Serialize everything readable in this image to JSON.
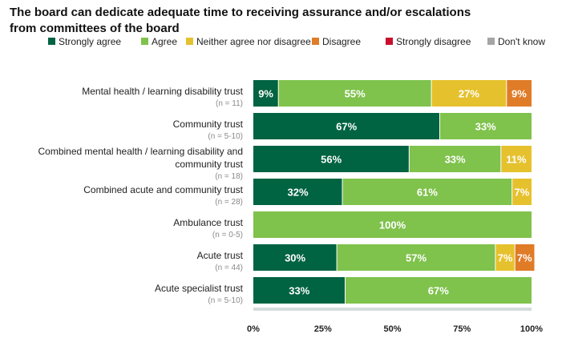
{
  "chart_data": {
    "type": "bar",
    "orientation": "horizontal",
    "stacked": true,
    "title_line1": "The board can dedicate adequate time to receiving assurance and/or escalations",
    "title_line2": "from committees of the board",
    "legend_position": "top",
    "legend": [
      {
        "name": "Strongly agree",
        "color": "#006341"
      },
      {
        "name": "Agree",
        "color": "#7fc24c"
      },
      {
        "name": "Neither agree nor disagree",
        "color": "#e6c12e"
      },
      {
        "name": "Disagree",
        "color": "#e07b27"
      },
      {
        "name": "Strongly disagree",
        "color": "#c8102e"
      },
      {
        "name": "Don't know",
        "color": "#a5a5a5"
      }
    ],
    "categories": [
      {
        "label_lines": [
          "Mental health / learning disability trust"
        ],
        "n": "(n = 11)"
      },
      {
        "label_lines": [
          "Community trust"
        ],
        "n": "(n = 5-10)"
      },
      {
        "label_lines": [
          "Combined mental health / learning disability and",
          "community trust"
        ],
        "n": "(n = 18)"
      },
      {
        "label_lines": [
          "Combined acute and community trust"
        ],
        "n": "(n = 28)"
      },
      {
        "label_lines": [
          "Ambulance trust"
        ],
        "n": "(n = 0-5)"
      },
      {
        "label_lines": [
          "Acute trust"
        ],
        "n": "(n = 44)"
      },
      {
        "label_lines": [
          "Acute specialist trust"
        ],
        "n": "(n = 5-10)"
      }
    ],
    "series": [
      {
        "name": "Strongly agree",
        "values": [
          9,
          67,
          56,
          32,
          0,
          30,
          33
        ],
        "labels": [
          "9%",
          "67%",
          "56%",
          "32%",
          "",
          "30%",
          "33%"
        ]
      },
      {
        "name": "Agree",
        "values": [
          55,
          33,
          33,
          61,
          100,
          57,
          67
        ],
        "labels": [
          "55%",
          "33%",
          "33%",
          "61%",
          "100%",
          "57%",
          "67%"
        ]
      },
      {
        "name": "Neither agree nor disagree",
        "values": [
          27,
          0,
          11,
          7,
          0,
          7,
          0
        ],
        "labels": [
          "27%",
          "",
          "11%",
          "7%",
          "",
          "7%",
          ""
        ]
      },
      {
        "name": "Disagree",
        "values": [
          9,
          0,
          0,
          0,
          0,
          7,
          0
        ],
        "labels": [
          "9%",
          "",
          "",
          "",
          "",
          "7%",
          ""
        ]
      },
      {
        "name": "Strongly disagree",
        "values": [
          0,
          0,
          0,
          0,
          0,
          0,
          0
        ],
        "labels": [
          "",
          "",
          "",
          "",
          "",
          "",
          ""
        ]
      },
      {
        "name": "Don't know",
        "values": [
          0,
          0,
          0,
          0,
          0,
          0,
          0
        ],
        "labels": [
          "",
          "",
          "",
          "",
          "",
          "",
          ""
        ]
      }
    ],
    "x_ticks": [
      "0%",
      "25%",
      "50%",
      "75%",
      "100%"
    ],
    "xlim": [
      0,
      100
    ],
    "grid": false
  }
}
